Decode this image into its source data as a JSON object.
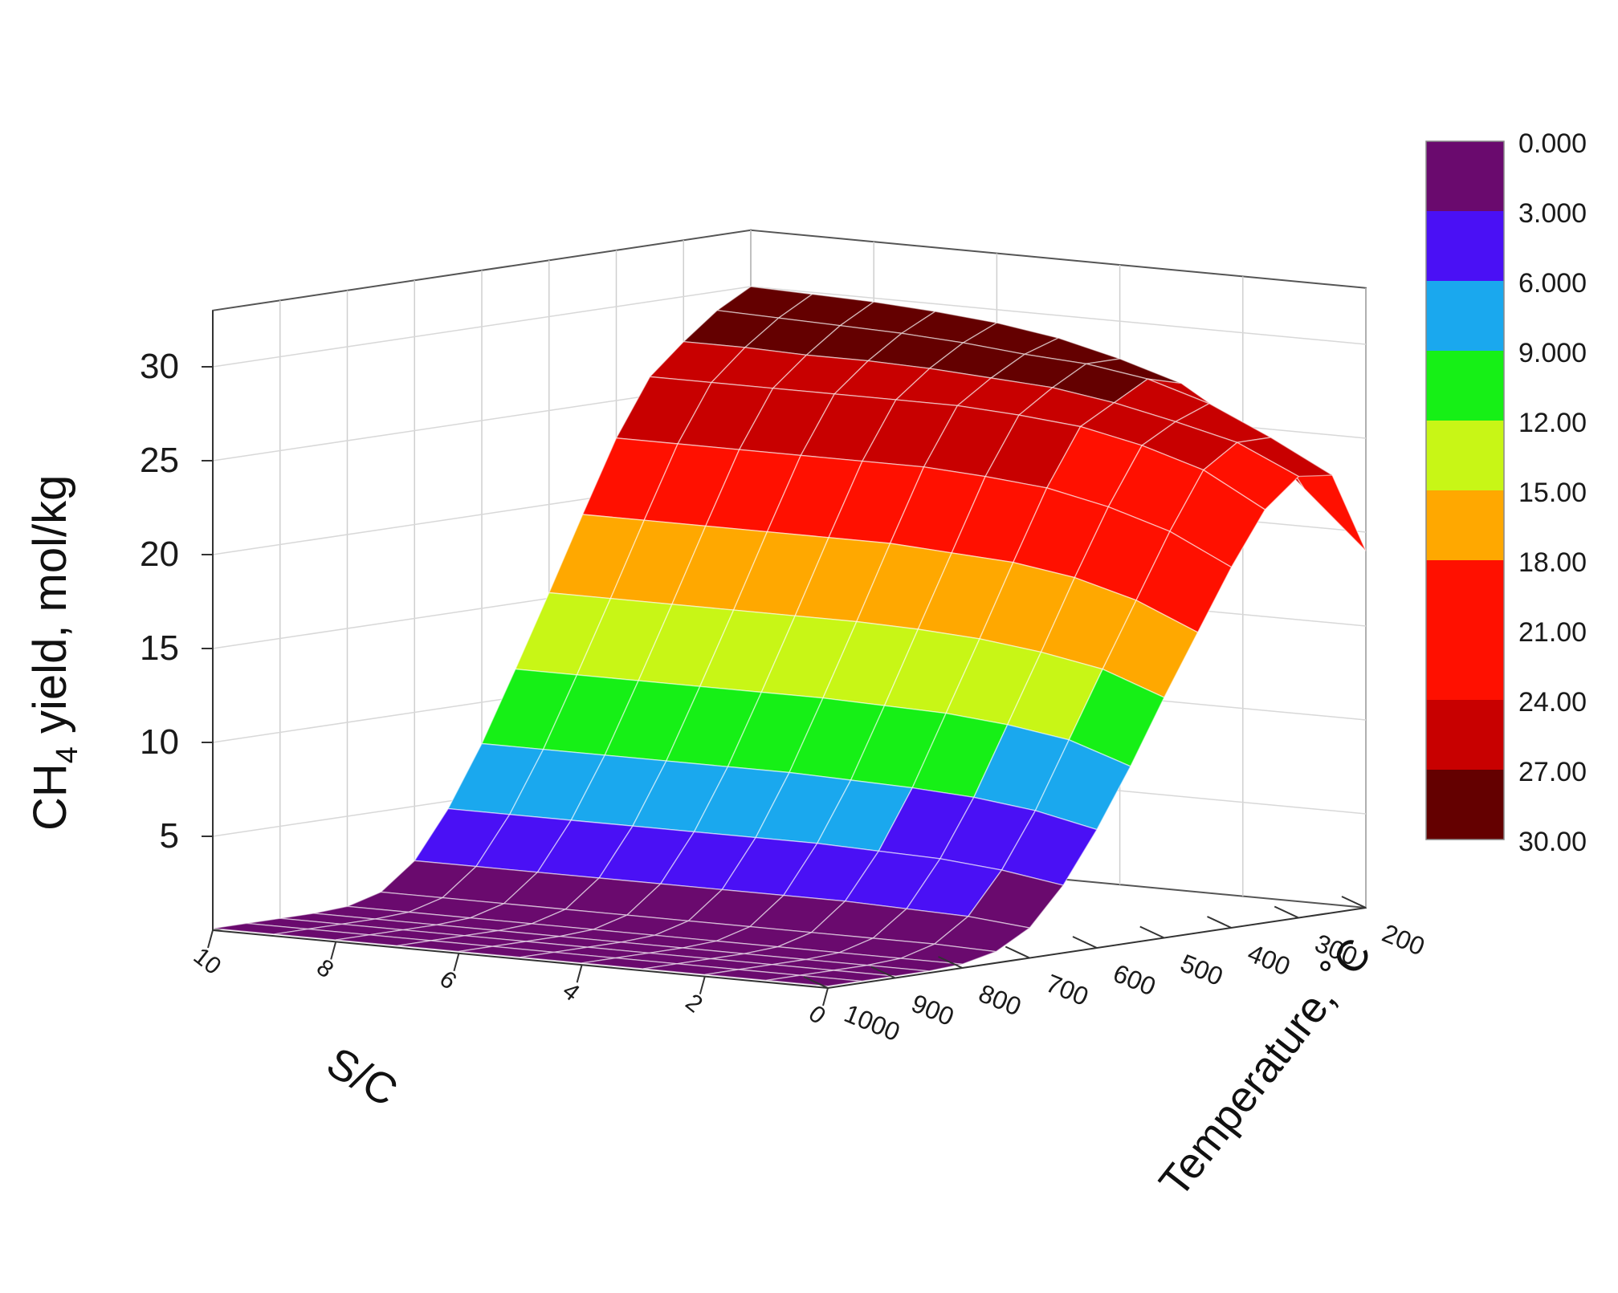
{
  "chart_data": {
    "type": "surface3d",
    "zlabel_main": "CH",
    "zlabel_sub": "4",
    "zlabel_rest": " yield, mol/kg",
    "xlabel": "S/C",
    "ylabel": "Temperature, ˚C",
    "zlim": [
      0,
      30
    ],
    "z_ticks": [
      "5",
      "10",
      "15",
      "20",
      "25",
      "30"
    ],
    "x_ticks": [
      "0",
      "2",
      "4",
      "6",
      "8",
      "10"
    ],
    "y_ticks": [
      "200",
      "300",
      "400",
      "500",
      "600",
      "700",
      "800",
      "900",
      "1000"
    ],
    "sc": [
      0,
      1,
      2,
      3,
      4,
      5,
      6,
      7,
      8,
      9,
      10
    ],
    "temperature": [
      200,
      250,
      300,
      350,
      400,
      450,
      500,
      550,
      600,
      650,
      700,
      750,
      800,
      850,
      900,
      950,
      1000
    ],
    "yield_by_sc": [
      [
        19.0,
        23.3,
        23.5,
        22.0,
        19.2,
        16.0,
        12.8,
        9.4,
        6.3,
        3.6,
        1.6,
        0.6,
        0.2,
        0.1,
        0.1,
        0.1,
        0.1
      ],
      [
        22.0,
        25.0,
        25.0,
        23.8,
        20.8,
        17.4,
        14.0,
        10.5,
        7.0,
        4.1,
        1.9,
        0.7,
        0.2,
        0.1,
        0.1,
        0.1,
        0.1
      ],
      [
        25.0,
        26.5,
        25.8,
        24.8,
        21.8,
        18.3,
        14.6,
        11.0,
        7.4,
        4.4,
        2.0,
        0.7,
        0.2,
        0.1,
        0.1,
        0.1,
        0.1
      ],
      [
        27.0,
        27.5,
        26.5,
        25.5,
        22.5,
        18.8,
        15.0,
        11.3,
        7.6,
        4.5,
        2.1,
        0.7,
        0.2,
        0.1,
        0.1,
        0.1,
        0.1
      ],
      [
        28.0,
        28.0,
        27.0,
        25.8,
        22.8,
        19.0,
        15.2,
        11.4,
        7.7,
        4.6,
        2.1,
        0.7,
        0.2,
        0.1,
        0.1,
        0.1,
        0.1
      ],
      [
        28.8,
        28.2,
        27.2,
        26.0,
        23.0,
        19.2,
        15.3,
        11.5,
        7.8,
        4.6,
        2.1,
        0.7,
        0.2,
        0.1,
        0.1,
        0.1,
        0.1
      ],
      [
        29.3,
        28.5,
        27.4,
        26.0,
        23.0,
        19.2,
        15.3,
        11.5,
        7.8,
        4.6,
        2.1,
        0.7,
        0.2,
        0.1,
        0.1,
        0.1,
        0.1
      ],
      [
        29.6,
        28.7,
        27.5,
        26.0,
        23.0,
        19.2,
        15.3,
        11.5,
        7.8,
        4.6,
        2.1,
        0.7,
        0.2,
        0.1,
        0.1,
        0.1,
        0.1
      ],
      [
        29.8,
        28.8,
        27.5,
        26.0,
        23.0,
        19.2,
        15.3,
        11.5,
        7.8,
        4.6,
        2.1,
        0.7,
        0.2,
        0.1,
        0.1,
        0.1,
        0.1
      ],
      [
        29.9,
        28.9,
        27.6,
        26.0,
        23.0,
        19.2,
        15.3,
        11.5,
        7.8,
        4.6,
        2.1,
        0.7,
        0.2,
        0.1,
        0.1,
        0.1,
        0.1
      ],
      [
        30.0,
        29.0,
        27.6,
        26.0,
        23.0,
        19.2,
        15.3,
        11.5,
        7.8,
        4.6,
        2.1,
        0.7,
        0.2,
        0.1,
        0.1,
        0.1,
        0.1
      ]
    ],
    "colorbar": {
      "labels": [
        "0.000",
        "3.000",
        "6.000",
        "9.000",
        "12.00",
        "15.00",
        "18.00",
        "21.00",
        "24.00",
        "27.00",
        "30.00"
      ],
      "colors": [
        "#6a0a6e",
        "#4a10f5",
        "#1aa8ee",
        "#16f016",
        "#c8f616",
        "#ffa800",
        "#ff1000",
        "#ff1000",
        "#c80000",
        "#640000"
      ]
    },
    "grid": true,
    "surface_mesh": true,
    "legend": "colorbar-right"
  }
}
